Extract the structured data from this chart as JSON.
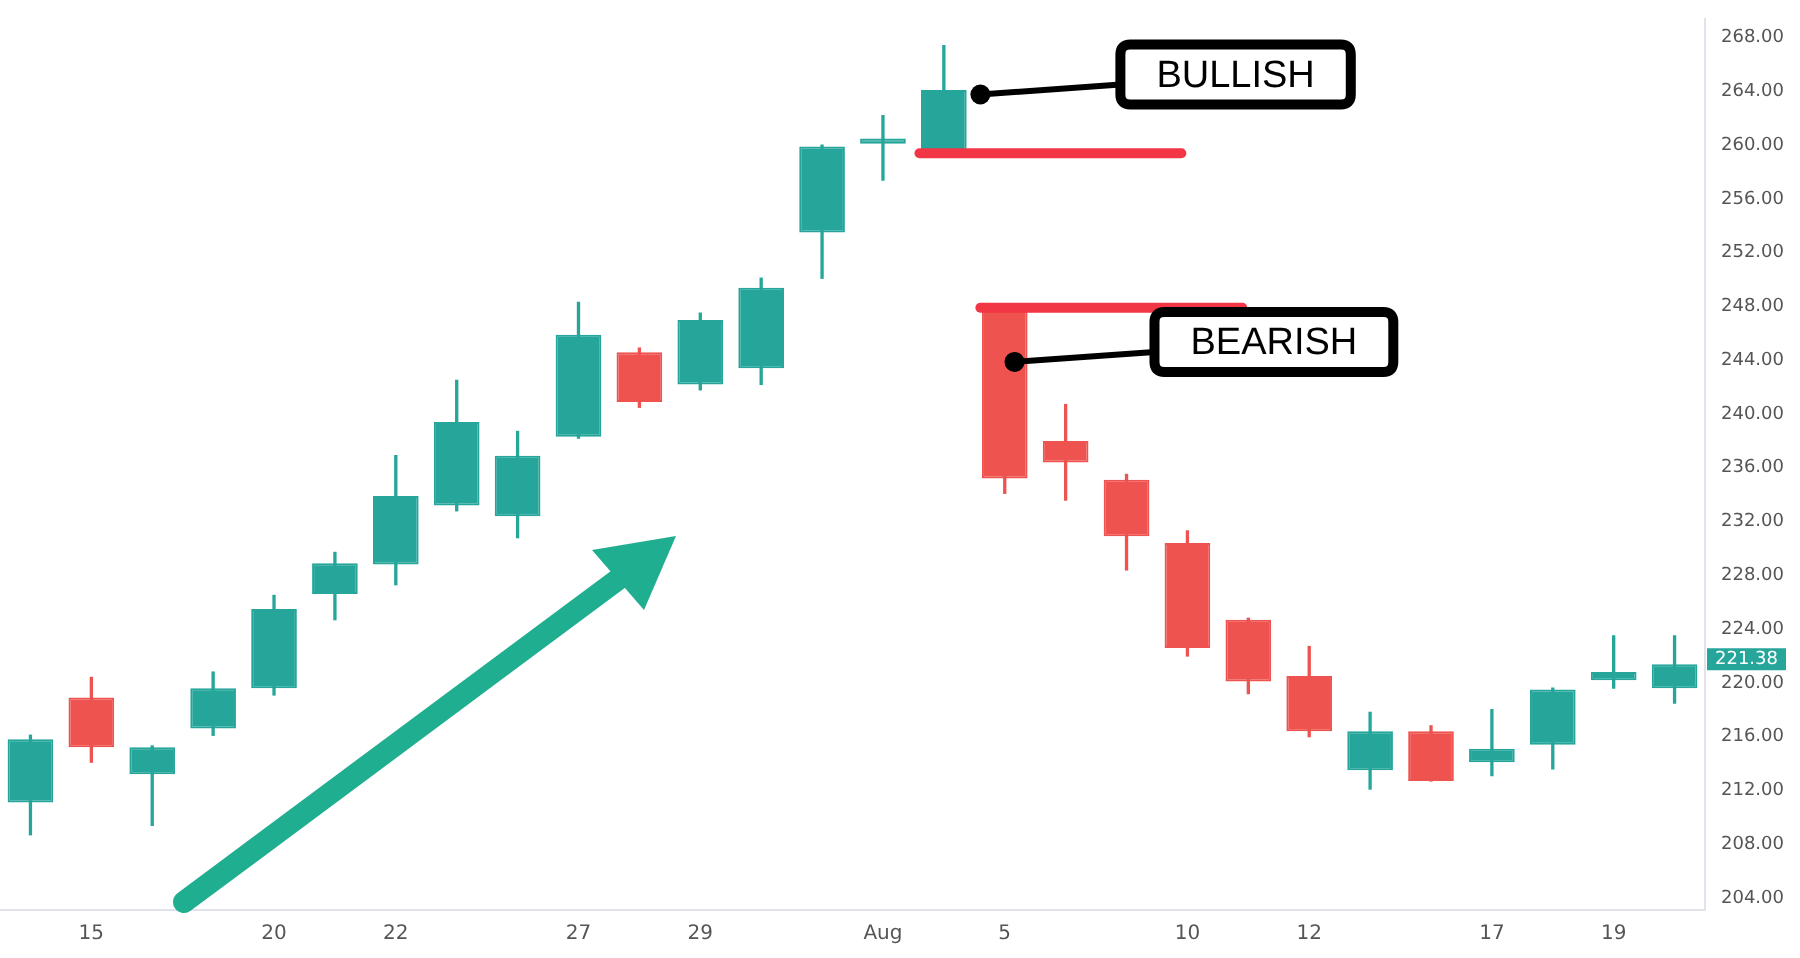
{
  "chart_data": {
    "type": "candlestick",
    "categories": [
      null,
      "15",
      null,
      null,
      "20",
      null,
      "22",
      null,
      null,
      "27",
      null,
      "29",
      null,
      null,
      "Aug",
      null,
      "5",
      null,
      null,
      "10",
      null,
      "12",
      null,
      null,
      "17",
      null,
      "19",
      null
    ],
    "ohlc": [
      [
        211.1,
        216.1,
        208.7,
        215.8
      ],
      [
        218.9,
        220.4,
        214.1,
        215.2
      ],
      [
        213.2,
        215.3,
        209.4,
        215.2
      ],
      [
        216.6,
        220.8,
        216.1,
        219.6
      ],
      [
        219.6,
        226.5,
        219.1,
        225.5
      ],
      [
        226.6,
        229.7,
        224.7,
        228.9
      ],
      [
        228.8,
        236.9,
        227.3,
        233.9
      ],
      [
        233.2,
        242.5,
        232.8,
        239.4
      ],
      [
        232.4,
        238.7,
        230.8,
        236.9
      ],
      [
        238.3,
        248.3,
        238.2,
        245.9
      ],
      [
        244.6,
        244.9,
        240.5,
        240.9
      ],
      [
        242.2,
        247.5,
        241.8,
        247.0
      ],
      [
        243.4,
        250.1,
        242.2,
        249.4
      ],
      [
        253.5,
        260.0,
        250.1,
        259.9
      ],
      [
        260.1,
        262.2,
        257.4,
        260.5
      ],
      [
        259.4,
        267.4,
        259.4,
        264.1
      ],
      [
        247.9,
        247.9,
        234.1,
        235.2
      ],
      [
        238.0,
        240.7,
        233.6,
        236.4
      ],
      [
        235.1,
        235.5,
        228.4,
        230.9
      ],
      [
        230.4,
        231.3,
        222.0,
        222.6
      ],
      [
        224.7,
        224.8,
        219.2,
        220.1
      ],
      [
        220.5,
        222.7,
        216.0,
        216.4
      ],
      [
        213.5,
        217.8,
        212.1,
        216.4
      ],
      [
        216.4,
        216.8,
        212.7,
        212.7
      ],
      [
        214.1,
        218.0,
        213.1,
        215.1
      ],
      [
        215.4,
        219.6,
        213.6,
        219.5
      ],
      [
        220.2,
        223.5,
        219.6,
        220.8
      ],
      [
        219.6,
        223.5,
        218.5,
        221.38
      ]
    ],
    "colors": [
      "#26a69a",
      "#ef5350",
      "#26a69a",
      "#26a69a",
      "#26a69a",
      "#26a69a",
      "#26a69a",
      "#26a69a",
      "#26a69a",
      "#26a69a",
      "#ef5350",
      "#26a69a",
      "#26a69a",
      "#26a69a",
      "#26a69a",
      "#26a69a",
      "#ef5350",
      "#ef5350",
      "#ef5350",
      "#ef5350",
      "#ef5350",
      "#ef5350",
      "#26a69a",
      "#ef5350",
      "#26a69a",
      "#26a69a",
      "#26a69a",
      "#26a69a"
    ],
    "ylim": [
      203.1,
      269.4
    ],
    "yticks": [
      {
        "value": 204,
        "label": "204.00"
      },
      {
        "value": 208,
        "label": "208.00"
      },
      {
        "value": 212,
        "label": "212.00"
      },
      {
        "value": 216,
        "label": "216.00"
      },
      {
        "value": 220,
        "label": "220.00"
      },
      {
        "value": 224,
        "label": "224.00"
      },
      {
        "value": 228,
        "label": "228.00"
      },
      {
        "value": 232,
        "label": "232.00"
      },
      {
        "value": 236,
        "label": "236.00"
      },
      {
        "value": 240,
        "label": "240.00"
      },
      {
        "value": 244,
        "label": "244.00"
      },
      {
        "value": 248,
        "label": "248.00"
      },
      {
        "value": 252,
        "label": "252.00"
      },
      {
        "value": 256,
        "label": "256.00"
      },
      {
        "value": 260,
        "label": "260.00"
      },
      {
        "value": 264,
        "label": "264.00"
      },
      {
        "value": 268,
        "label": "268.00"
      }
    ],
    "ref_lines": [
      {
        "axis": "y",
        "value": 259.4,
        "color": "#f23645"
      },
      {
        "axis": "y",
        "value": 247.9,
        "color": "#f23645"
      }
    ],
    "annotations": [
      "BULLISH",
      "BEARISH",
      "221.38"
    ],
    "grid": false,
    "legend": false
  }
}
